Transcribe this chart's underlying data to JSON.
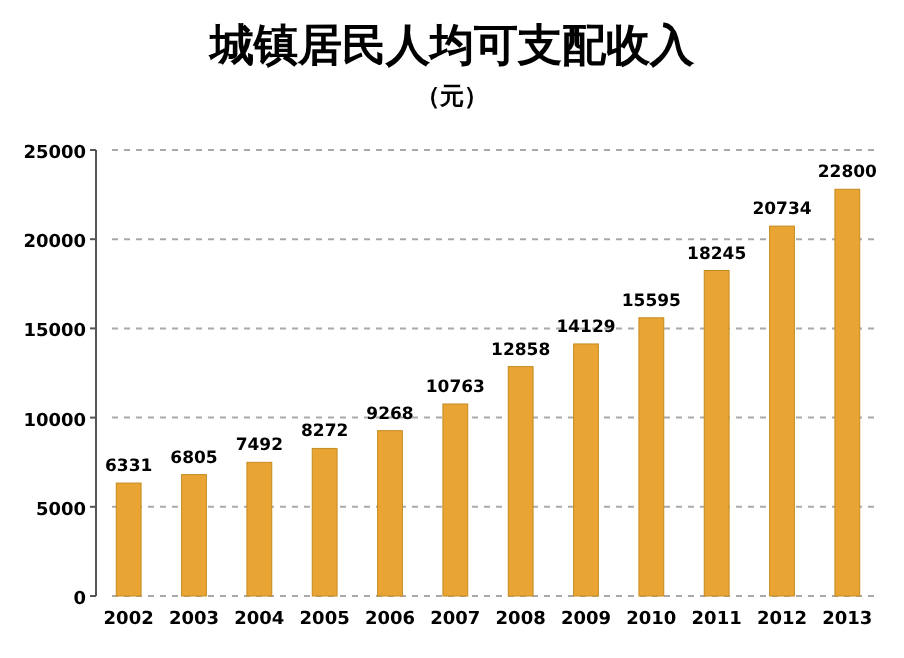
{
  "chart_data": {
    "type": "bar",
    "title": "城镇居民人均可支配收入",
    "subtitle": "（元）",
    "categories": [
      "2002",
      "2003",
      "2004",
      "2005",
      "2006",
      "2007",
      "2008",
      "2009",
      "2010",
      "2011",
      "2012",
      "2013"
    ],
    "values": [
      6331,
      6805,
      7492,
      8272,
      9268,
      10763,
      12858,
      14129,
      15595,
      18245,
      20734,
      22800
    ],
    "color": "#e8a534",
    "data_labels": true,
    "grid": "y",
    "ylim": [
      0,
      25000
    ],
    "yticks": [
      0,
      5000,
      10000,
      15000,
      20000,
      25000
    ]
  }
}
